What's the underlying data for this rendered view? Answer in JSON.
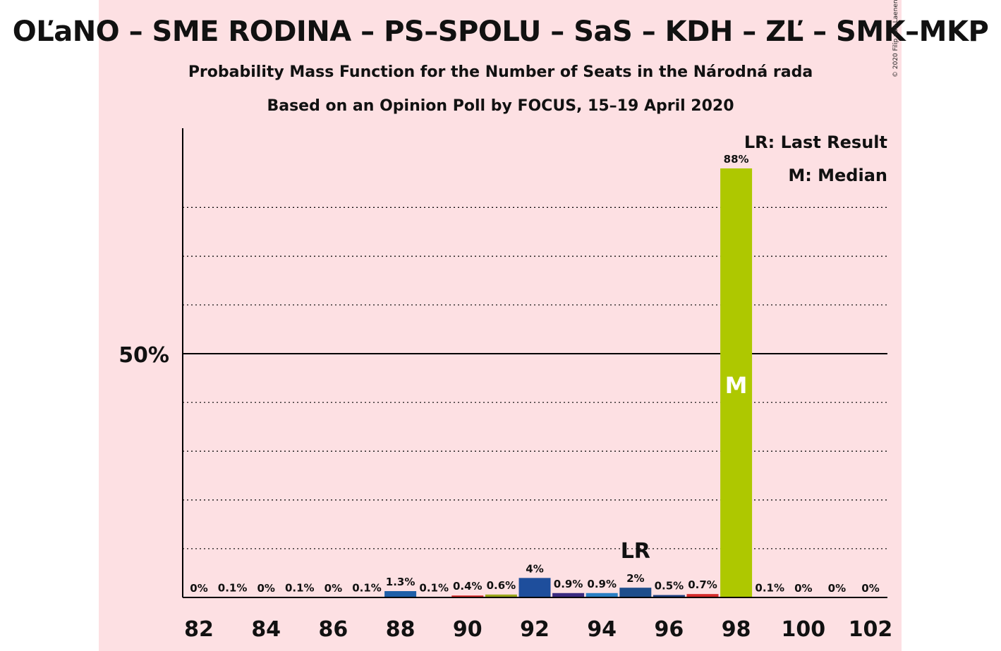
{
  "title": "OĽaNO – SME RODINA – PS–SPOLU – SaS – KDH – ZĽ – SMK–MKP",
  "subtitle": "Probability Mass Function for the Number of Seats in the Národná rada",
  "source": "Based on an Opinion Poll by FOCUS, 15–19 April 2020",
  "copyright": "© 2020 Filip van Laenen",
  "legend": {
    "last_result": "LR: Last Result",
    "median": "M: Median"
  },
  "colors": {
    "background_band": "#fde0e3",
    "median_bar": "#aec800",
    "axis": "#000000"
  },
  "chart_data": {
    "type": "bar",
    "x": [
      82,
      83,
      84,
      85,
      86,
      87,
      88,
      89,
      90,
      91,
      92,
      93,
      94,
      95,
      96,
      97,
      98,
      99,
      100,
      101,
      102
    ],
    "values": [
      0,
      0.1,
      0,
      0.1,
      0,
      0.1,
      1.3,
      0.1,
      0.4,
      0.6,
      4,
      0.9,
      0.9,
      2,
      0.5,
      0.7,
      88,
      0.1,
      0,
      0,
      0
    ],
    "value_labels": [
      "0%",
      "0.1%",
      "0%",
      "0.1%",
      "0%",
      "0.1%",
      "1.3%",
      "0.1%",
      "0.4%",
      "0.6%",
      "4%",
      "0.9%",
      "0.9%",
      "2%",
      "0.5%",
      "0.7%",
      "88%",
      "0.1%",
      "0%",
      "0%",
      "0%"
    ],
    "bar_colors": [
      "#1f5fa8",
      "#1f5fa8",
      "#1f5fa8",
      "#1f5fa8",
      "#1f5fa8",
      "#1f5fa8",
      "#1f5fa8",
      "#1f5fa8",
      "#d42a2a",
      "#9aa61a",
      "#1e4e9c",
      "#3a2a80",
      "#2a7fc4",
      "#1e4e8c",
      "#1e3f80",
      "#d42a2a",
      "#aec800",
      "#1f5fa8",
      "#1f5fa8",
      "#1f5fa8",
      "#1f5fa8"
    ],
    "x_tick_labels": [
      "82",
      "84",
      "86",
      "88",
      "90",
      "92",
      "94",
      "96",
      "98",
      "100",
      "102"
    ],
    "x_tick_values": [
      82,
      84,
      86,
      88,
      90,
      92,
      94,
      96,
      98,
      100,
      102
    ],
    "y_tick_label": "50%",
    "y_tick_value": 50,
    "ylim": [
      0,
      96
    ],
    "dotted_gridlines": [
      10,
      20,
      30,
      40,
      60,
      70,
      80
    ],
    "last_result": {
      "x": 95,
      "label": "LR"
    },
    "median": {
      "x": 98,
      "label": "M"
    }
  }
}
